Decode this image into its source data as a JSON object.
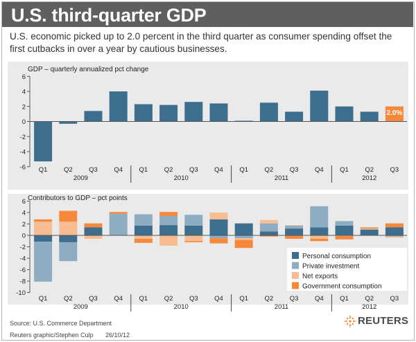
{
  "title": "U.S. third-quarter GDP",
  "subtitle": "U.S. economic picked up to 2.0 percent in the third quarter as consumer spending offset the first cutbacks in over a year by cautious businesses.",
  "source": "Source: U.S. Commerce Department",
  "credit": "Reuters graphic/Stephen Culp",
  "date": "26/10/12",
  "logo_text": "REUTERS",
  "colors": {
    "gdp_bar": "#3e6e8e",
    "highlight": "#f5883a",
    "personal_consumption": "#3e6e8e",
    "private_investment": "#8fadc2",
    "net_exports": "#f7bc92",
    "government_consumption": "#f5883a"
  },
  "chart_data": [
    {
      "type": "bar",
      "title": "GDP – quarterly annualized pct change",
      "categories": [
        "Q1",
        "Q2",
        "Q3",
        "Q4",
        "Q1",
        "Q2",
        "Q3",
        "Q4",
        "Q1",
        "Q2",
        "Q3",
        "Q4",
        "Q1",
        "Q2",
        "Q3"
      ],
      "years": [
        "2009",
        "2010",
        "2011",
        "2012"
      ],
      "values": [
        -5.3,
        -0.3,
        1.4,
        4.0,
        2.3,
        2.2,
        2.6,
        2.4,
        0.1,
        2.5,
        1.3,
        4.1,
        2.0,
        1.3,
        2.0
      ],
      "highlight_label": "2.0%",
      "highlight_index": 14,
      "ylim": [
        -6,
        6
      ],
      "yticks": [
        -6,
        -4,
        -2,
        0,
        2,
        4,
        6
      ],
      "grid": false
    },
    {
      "type": "bar",
      "stacked": true,
      "title": "Contributors to GDP – pct points",
      "categories": [
        "Q1",
        "Q2",
        "Q3",
        "Q4",
        "Q1",
        "Q2",
        "Q3",
        "Q4",
        "Q1",
        "Q2",
        "Q3",
        "Q4",
        "Q1",
        "Q2",
        "Q3"
      ],
      "years": [
        "2009",
        "2010",
        "2011",
        "2012"
      ],
      "ylim": [
        -10,
        6
      ],
      "yticks": [
        -10,
        -8,
        -6,
        -4,
        -2,
        0,
        2,
        4,
        6
      ],
      "legend_position": "bottom-right",
      "series": [
        {
          "name": "Personal consumption",
          "values": [
            -1.1,
            -1.2,
            1.4,
            0.0,
            1.7,
            1.8,
            1.7,
            2.8,
            2.1,
            0.7,
            1.2,
            1.4,
            1.7,
            1.0,
            1.4
          ]
        },
        {
          "name": "Private investment",
          "values": [
            -7.0,
            -3.3,
            0.0,
            3.8,
            2.0,
            1.6,
            1.9,
            -0.5,
            -0.5,
            1.4,
            0.5,
            3.7,
            0.8,
            0.1,
            -0.2
          ]
        },
        {
          "name": "Net exports",
          "values": [
            2.4,
            2.4,
            -0.6,
            0.0,
            -0.6,
            -1.8,
            -1.0,
            1.2,
            -0.3,
            0.6,
            0.1,
            -0.6,
            -0.1,
            0.1,
            -0.2
          ]
        },
        {
          "name": "Government consumption",
          "values": [
            0.4,
            1.9,
            0.7,
            0.3,
            -0.7,
            0.7,
            -0.2,
            -0.9,
            -1.4,
            -0.2,
            -0.6,
            -0.4,
            -0.6,
            0.2,
            0.7
          ]
        }
      ]
    }
  ]
}
